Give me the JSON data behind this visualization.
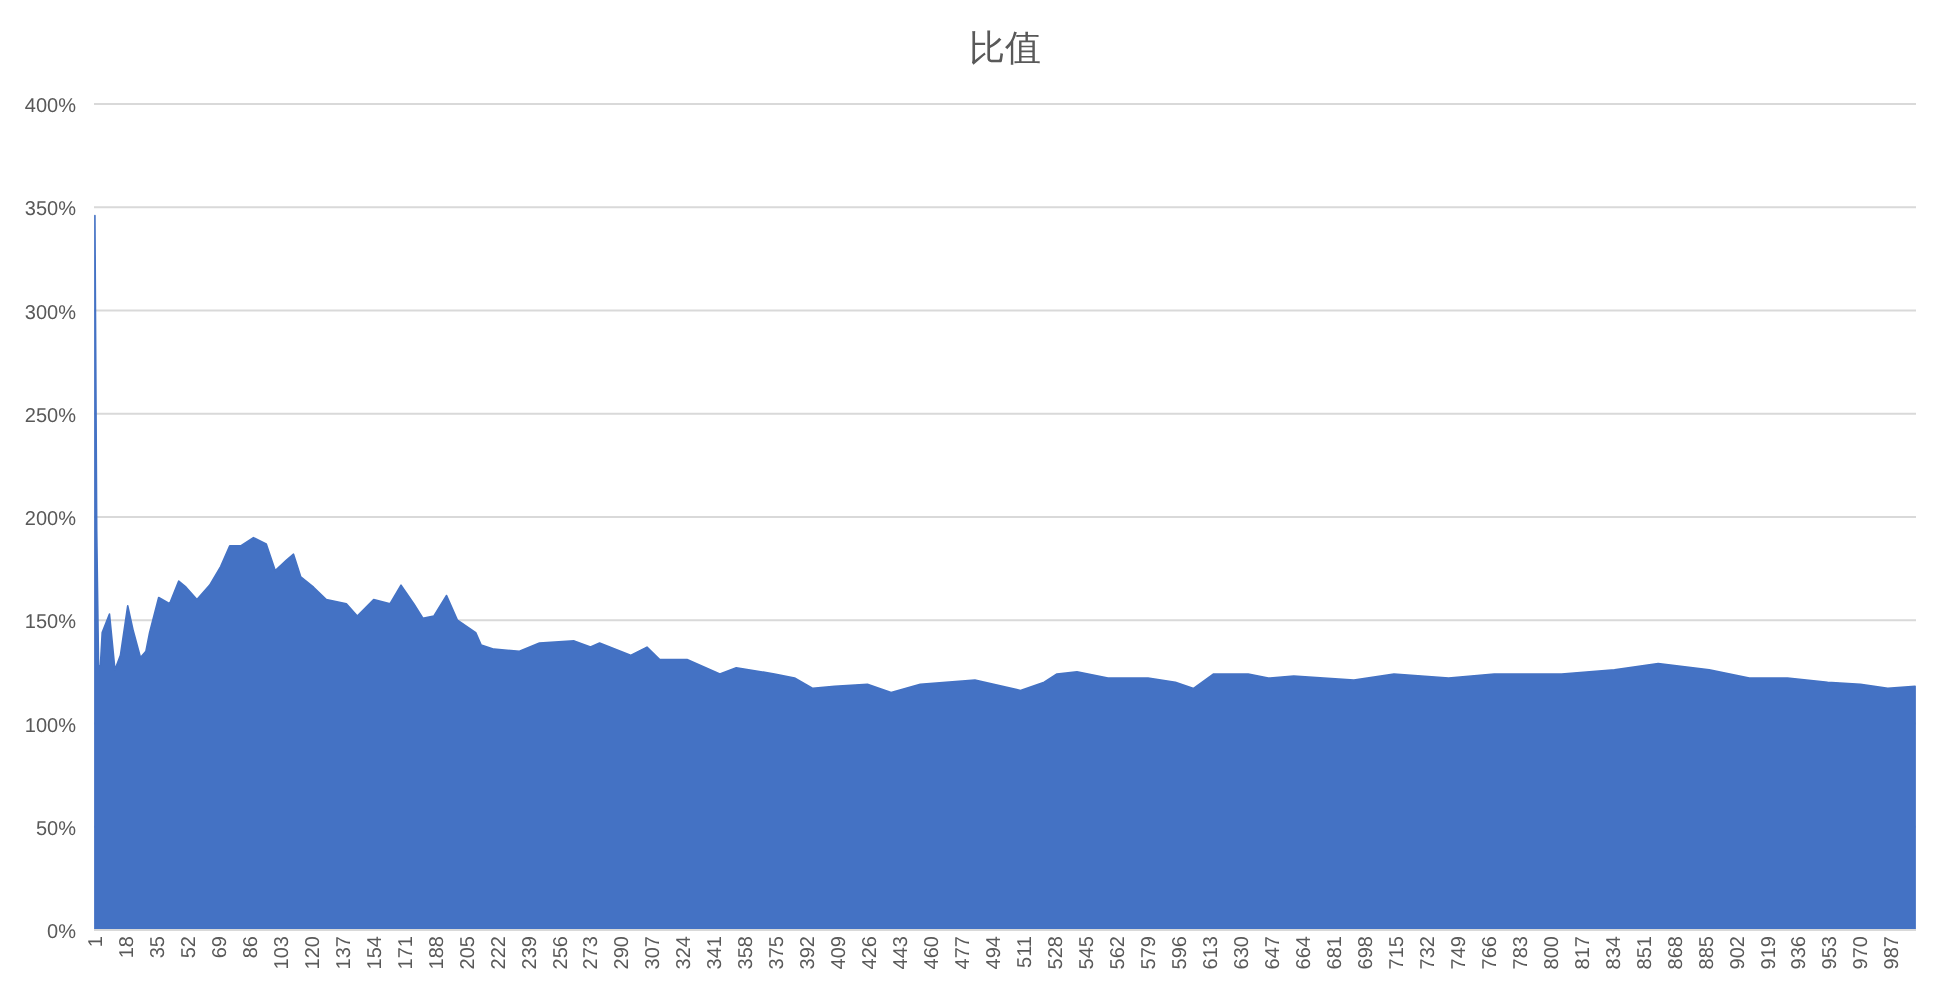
{
  "chart_data": {
    "type": "area",
    "title": "比值",
    "color": "#4472c4",
    "grid": "y",
    "x": [
      1,
      2,
      3,
      4,
      5,
      9,
      12,
      15,
      19,
      22,
      26,
      29,
      31,
      36,
      42,
      47,
      51,
      57,
      64,
      70,
      75,
      81,
      88,
      95,
      100,
      106,
      110,
      114,
      121,
      128,
      139,
      145,
      154,
      163,
      169,
      176,
      181,
      187,
      194,
      200,
      210,
      213,
      220,
      234,
      245,
      264,
      273,
      278,
      295,
      304,
      311,
      326,
      344,
      353,
      374,
      385,
      395,
      407,
      425,
      438,
      454,
      484,
      509,
      522,
      529,
      540,
      557,
      579,
      594,
      604,
      615,
      634,
      645,
      659,
      692,
      714,
      744,
      769,
      806,
      835,
      859,
      887,
      909,
      930,
      952,
      970,
      985,
      1000
    ],
    "values": [
      346,
      193,
      128,
      128,
      144,
      153,
      126,
      133,
      157,
      145,
      132,
      135,
      144,
      161,
      158,
      169,
      166,
      160,
      167,
      176,
      186,
      186,
      190,
      187,
      174,
      179,
      182,
      171,
      166,
      160,
      158,
      152,
      160,
      158,
      167,
      158,
      151,
      152,
      162,
      150,
      144,
      138,
      136,
      135,
      139,
      140,
      137,
      139,
      133,
      137,
      131,
      131,
      124,
      127,
      124,
      122,
      117,
      118,
      119,
      115,
      119,
      121,
      116,
      120,
      124,
      125,
      122,
      122,
      120,
      117,
      124,
      124,
      122,
      123,
      121,
      124,
      122,
      124,
      124,
      126,
      129,
      126,
      122,
      122,
      120,
      119,
      117,
      118
    ],
    "xlim": [
      0.5,
      1000.5
    ],
    "xticks": [
      1,
      18,
      35,
      52,
      69,
      86,
      103,
      120,
      137,
      154,
      171,
      188,
      205,
      222,
      239,
      256,
      273,
      290,
      307,
      324,
      341,
      358,
      375,
      392,
      409,
      426,
      443,
      460,
      477,
      494,
      511,
      528,
      545,
      562,
      579,
      596,
      613,
      630,
      647,
      664,
      681,
      698,
      715,
      732,
      749,
      766,
      783,
      800,
      817,
      834,
      851,
      868,
      885,
      902,
      919,
      936,
      953,
      970,
      987
    ],
    "ylim": [
      0,
      400
    ],
    "yticks": [
      {
        "value": 0,
        "label": "0%"
      },
      {
        "value": 50,
        "label": "50%"
      },
      {
        "value": 100,
        "label": "100%"
      },
      {
        "value": 150,
        "label": "150%"
      },
      {
        "value": 200,
        "label": "200%"
      },
      {
        "value": 250,
        "label": "250%"
      },
      {
        "value": 300,
        "label": "300%"
      },
      {
        "value": 350,
        "label": "350%"
      },
      {
        "value": 400,
        "label": "400%"
      }
    ]
  }
}
